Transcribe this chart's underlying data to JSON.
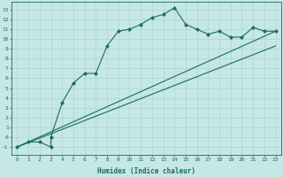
{
  "xlabel": "Humidex (Indice chaleur)",
  "xlim": [
    -0.5,
    23.5
  ],
  "ylim": [
    -1.8,
    13.8
  ],
  "xticks": [
    0,
    1,
    2,
    3,
    4,
    5,
    6,
    7,
    8,
    9,
    10,
    11,
    12,
    13,
    14,
    15,
    16,
    17,
    18,
    19,
    20,
    21,
    22,
    23
  ],
  "yticks": [
    -1,
    0,
    1,
    2,
    3,
    4,
    5,
    6,
    7,
    8,
    9,
    10,
    11,
    12,
    13
  ],
  "bg_color": "#c5e8e5",
  "line_color": "#1a6b5e",
  "grid_color": "#aed4d0",
  "humidex_x": [
    0,
    1,
    2,
    3,
    3,
    4,
    5,
    6,
    7,
    8,
    9,
    10,
    11,
    12,
    13,
    14,
    15,
    16,
    17,
    18,
    19,
    20,
    21,
    22,
    23
  ],
  "humidex_y": [
    -1.0,
    -0.5,
    -0.5,
    -1.0,
    0.0,
    3.5,
    5.5,
    6.5,
    6.5,
    9.3,
    10.8,
    11.0,
    11.5,
    12.2,
    12.5,
    13.2,
    11.5,
    11.0,
    10.5,
    10.8,
    10.2,
    10.2,
    11.2,
    10.8,
    10.8
  ],
  "ref_line1_x": [
    0,
    23
  ],
  "ref_line1_y": [
    -1.0,
    10.8
  ],
  "ref_line2_x": [
    0,
    23
  ],
  "ref_line2_y": [
    -1.0,
    9.3
  ]
}
